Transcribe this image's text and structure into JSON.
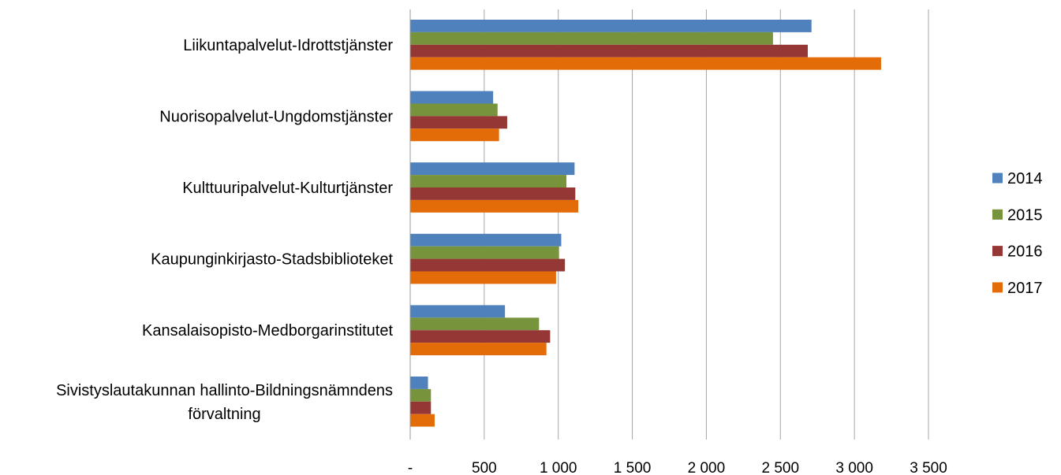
{
  "chart_data": {
    "type": "bar",
    "orientation": "horizontal",
    "categories": [
      "Liikuntapalvelut-Idrottstjänster",
      "Nuorisopalvelut-Ungdomstjänster",
      "Kulttuuripalvelut-Kulturtjänster",
      "Kaupunginkirjasto-Stadsbiblioteket",
      "Kansalaisopisto-Medborgarinstitutet",
      "Sivistyslautakunnan hallinto-Bildningsnämndens förvaltning"
    ],
    "series": [
      {
        "name": "2014",
        "color": "#4f81bd",
        "values": [
          2710,
          560,
          1110,
          1020,
          640,
          120
        ]
      },
      {
        "name": "2015",
        "color": "#77933c",
        "values": [
          2450,
          590,
          1055,
          1005,
          870,
          140
        ]
      },
      {
        "name": "2016",
        "color": "#953735",
        "values": [
          2685,
          655,
          1115,
          1045,
          945,
          140
        ]
      },
      {
        "name": "2017",
        "color": "#e36c09",
        "values": [
          3180,
          600,
          1135,
          985,
          920,
          165
        ]
      }
    ],
    "x_ticks": [
      {
        "value": 0,
        "label": "-"
      },
      {
        "value": 500,
        "label": "500"
      },
      {
        "value": 1000,
        "label": "1 000"
      },
      {
        "value": 1500,
        "label": "1 500"
      },
      {
        "value": 2000,
        "label": "2 000"
      },
      {
        "value": 2500,
        "label": "2 500"
      },
      {
        "value": 3000,
        "label": "3 000"
      },
      {
        "value": 3500,
        "label": "3 500"
      }
    ],
    "xlim": [
      0,
      3500
    ],
    "grid": true,
    "legend_position": "right",
    "title": "",
    "xlabel": "",
    "ylabel": ""
  }
}
